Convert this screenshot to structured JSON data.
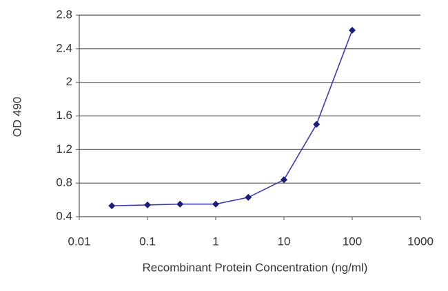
{
  "chart_data": {
    "type": "line",
    "xlabel": "Recombinant Protein Concentration (ng/ml)",
    "ylabel": "OD 490",
    "x": [
      0.03,
      0.1,
      0.3,
      1,
      3,
      10,
      30,
      100
    ],
    "values": [
      0.53,
      0.54,
      0.55,
      0.55,
      0.63,
      0.84,
      1.5,
      2.62
    ],
    "color": "#3b3bb0",
    "marker_color": "#1c1c7a",
    "xscale": "log",
    "xlim": [
      0.01,
      1000
    ],
    "xticks": [
      0.01,
      0.1,
      1,
      10,
      100,
      1000
    ],
    "ylim": [
      0.4,
      2.8
    ],
    "yticks": [
      0.4,
      0.8,
      1.2,
      1.6,
      2,
      2.4,
      2.8
    ],
    "grid": true
  }
}
